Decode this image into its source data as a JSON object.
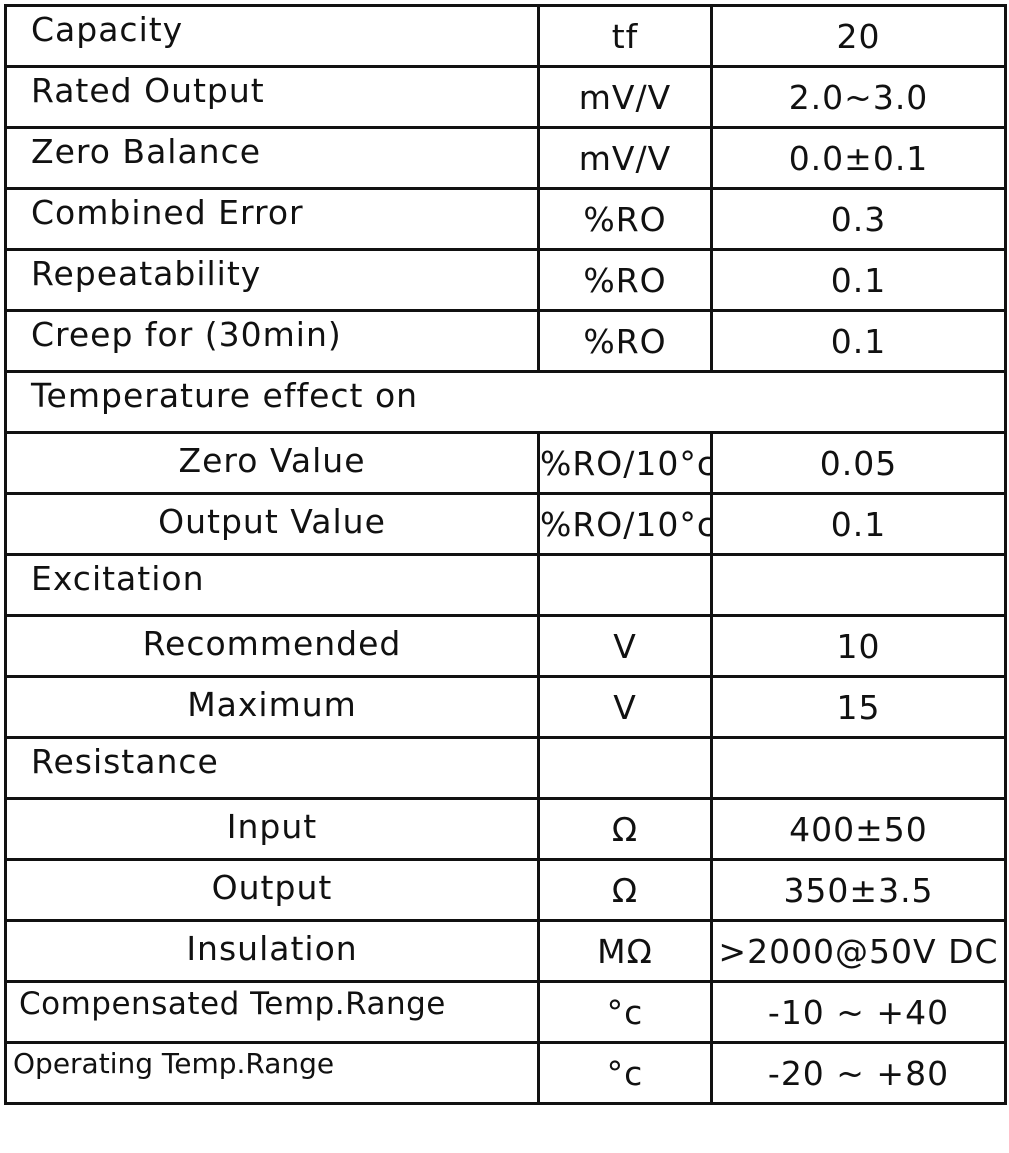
{
  "rows": [
    {
      "param": "Capacity",
      "unit": "tf",
      "value": "20"
    },
    {
      "param": "Rated Output",
      "unit": "mV/V",
      "value": "2.0~3.0"
    },
    {
      "param": "Zero Balance",
      "unit": "mV/V",
      "value": "0.0±0.1"
    },
    {
      "param": "Combined Error",
      "unit": "%RO",
      "value": "0.3"
    },
    {
      "param": "Repeatability",
      "unit": "%RO",
      "value": "0.1"
    },
    {
      "param": "Creep for (30min)",
      "unit": "%RO",
      "value": "0.1"
    },
    {
      "param": "Temperature effect on"
    },
    {
      "param": "Zero Value",
      "unit": "%RO/10°c",
      "value": "0.05"
    },
    {
      "param": "Output Value",
      "unit": "%RO/10°c",
      "value": "0.1"
    },
    {
      "param": "Excitation",
      "unit": "",
      "value": ""
    },
    {
      "param": "Recommended",
      "unit": "V",
      "value": "10"
    },
    {
      "param": "Maximum",
      "unit": "V",
      "value": "15"
    },
    {
      "param": "Resistance",
      "unit": "",
      "value": ""
    },
    {
      "param": "Input",
      "unit": "Ω",
      "value": "400±50"
    },
    {
      "param": "Output",
      "unit": "Ω",
      "value": "350±3.5"
    },
    {
      "param": "Insulation",
      "unit": "MΩ",
      "value": ">2000@50V DC"
    },
    {
      "param": "Compensated Temp.Range",
      "unit": "°c",
      "value": "-10 ~ +40"
    },
    {
      "param": "Operating Temp.Range",
      "unit": "°c",
      "value": "-20 ~ +80"
    }
  ]
}
